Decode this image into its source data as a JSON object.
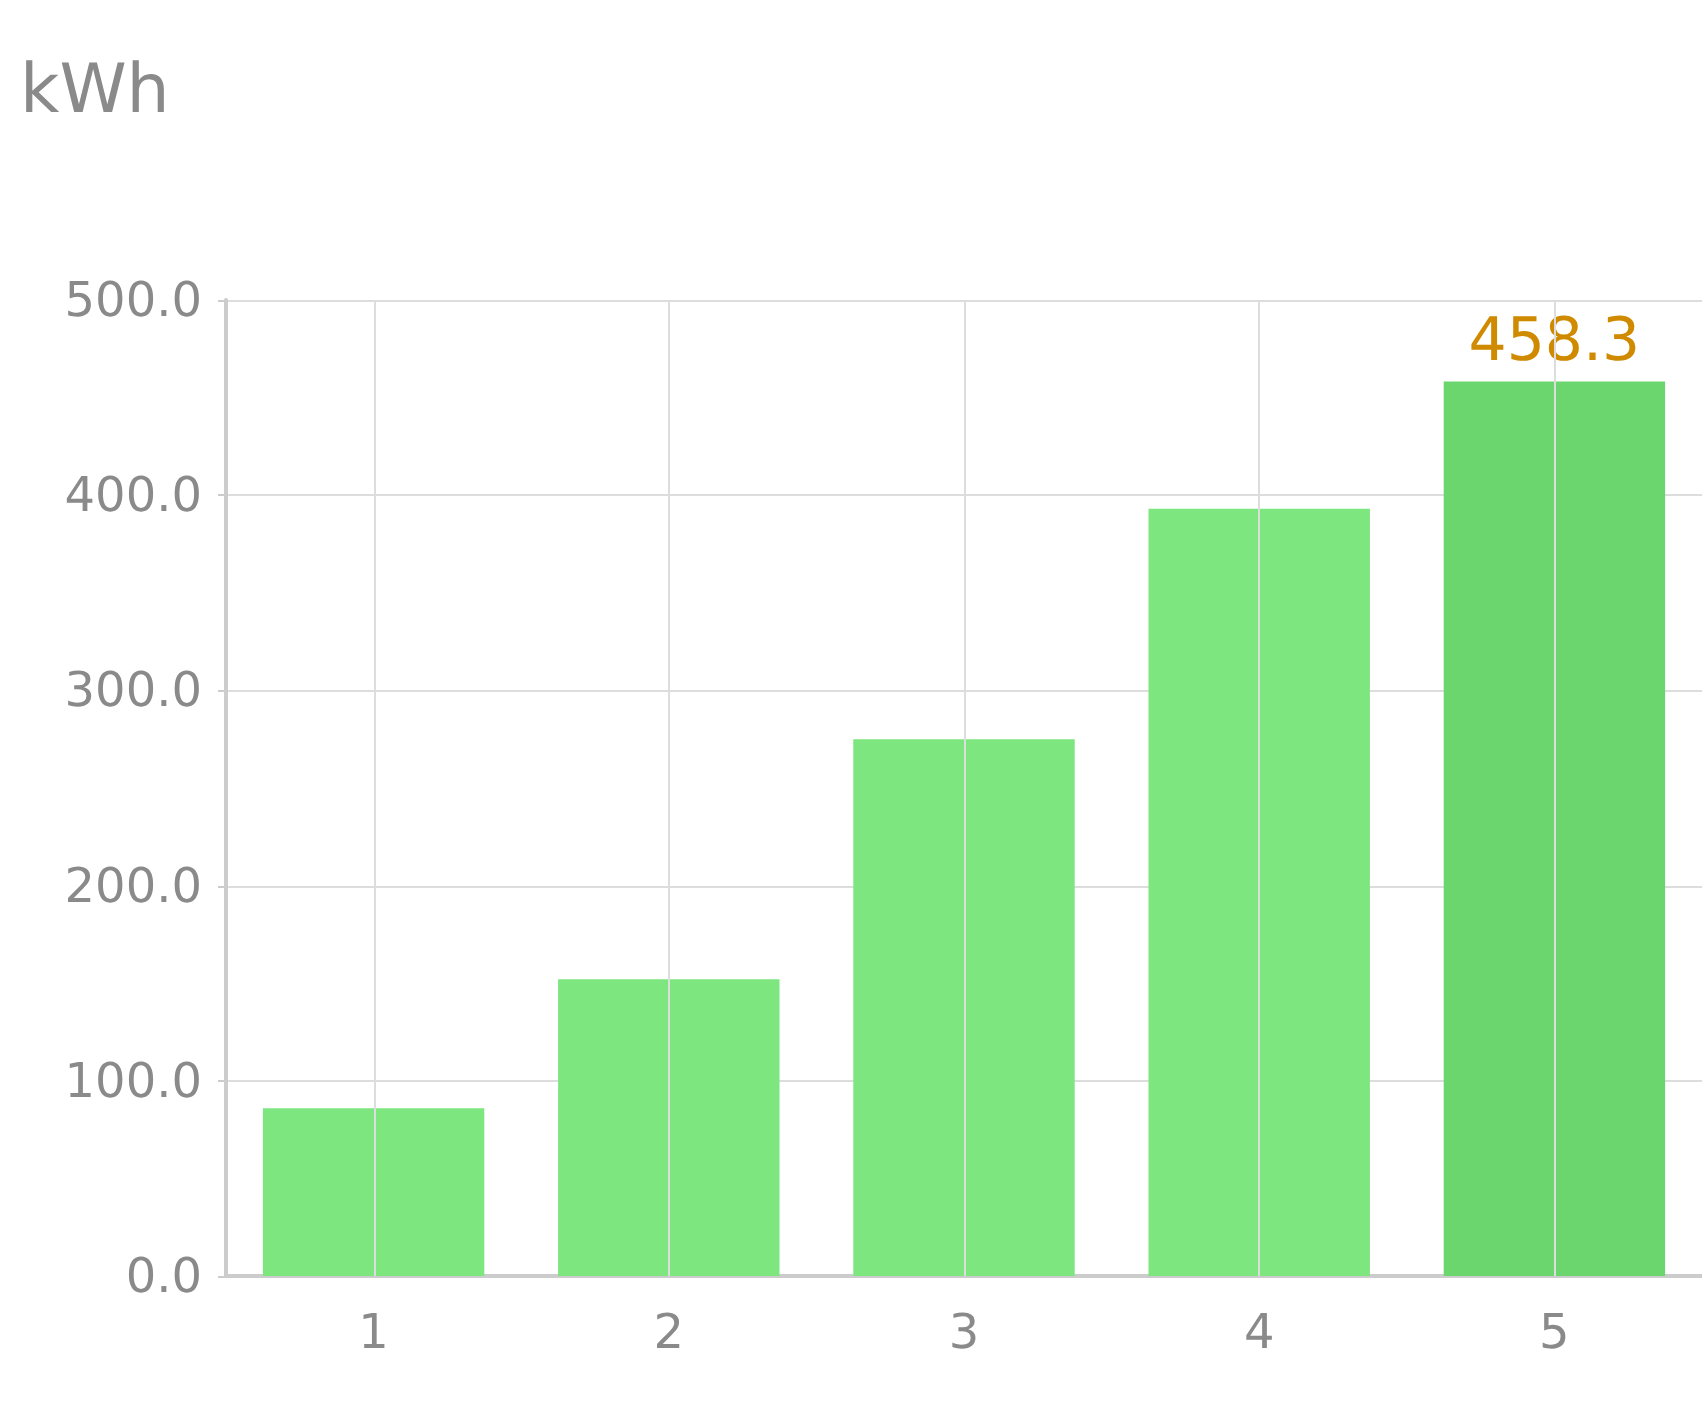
{
  "chart_data": {
    "type": "bar",
    "ylabel": "kWh",
    "categories": [
      "1",
      "2",
      "3",
      "4",
      "5"
    ],
    "values": [
      86,
      152,
      275,
      393,
      458.3
    ],
    "colors": [
      "#7de67f",
      "#7de67f",
      "#7de67f",
      "#7de67f",
      "#6bd56e"
    ],
    "value_labels": [
      null,
      null,
      null,
      null,
      "458.3"
    ],
    "ylim": [
      0,
      500
    ],
    "yticks": [
      {
        "value": 0,
        "label": "0.0"
      },
      {
        "value": 100,
        "label": "100.0"
      },
      {
        "value": 200,
        "label": "200.0"
      },
      {
        "value": 300,
        "label": "300.0"
      },
      {
        "value": 400,
        "label": "400.0"
      },
      {
        "value": 500,
        "label": "500.0"
      }
    ],
    "grid": true
  }
}
